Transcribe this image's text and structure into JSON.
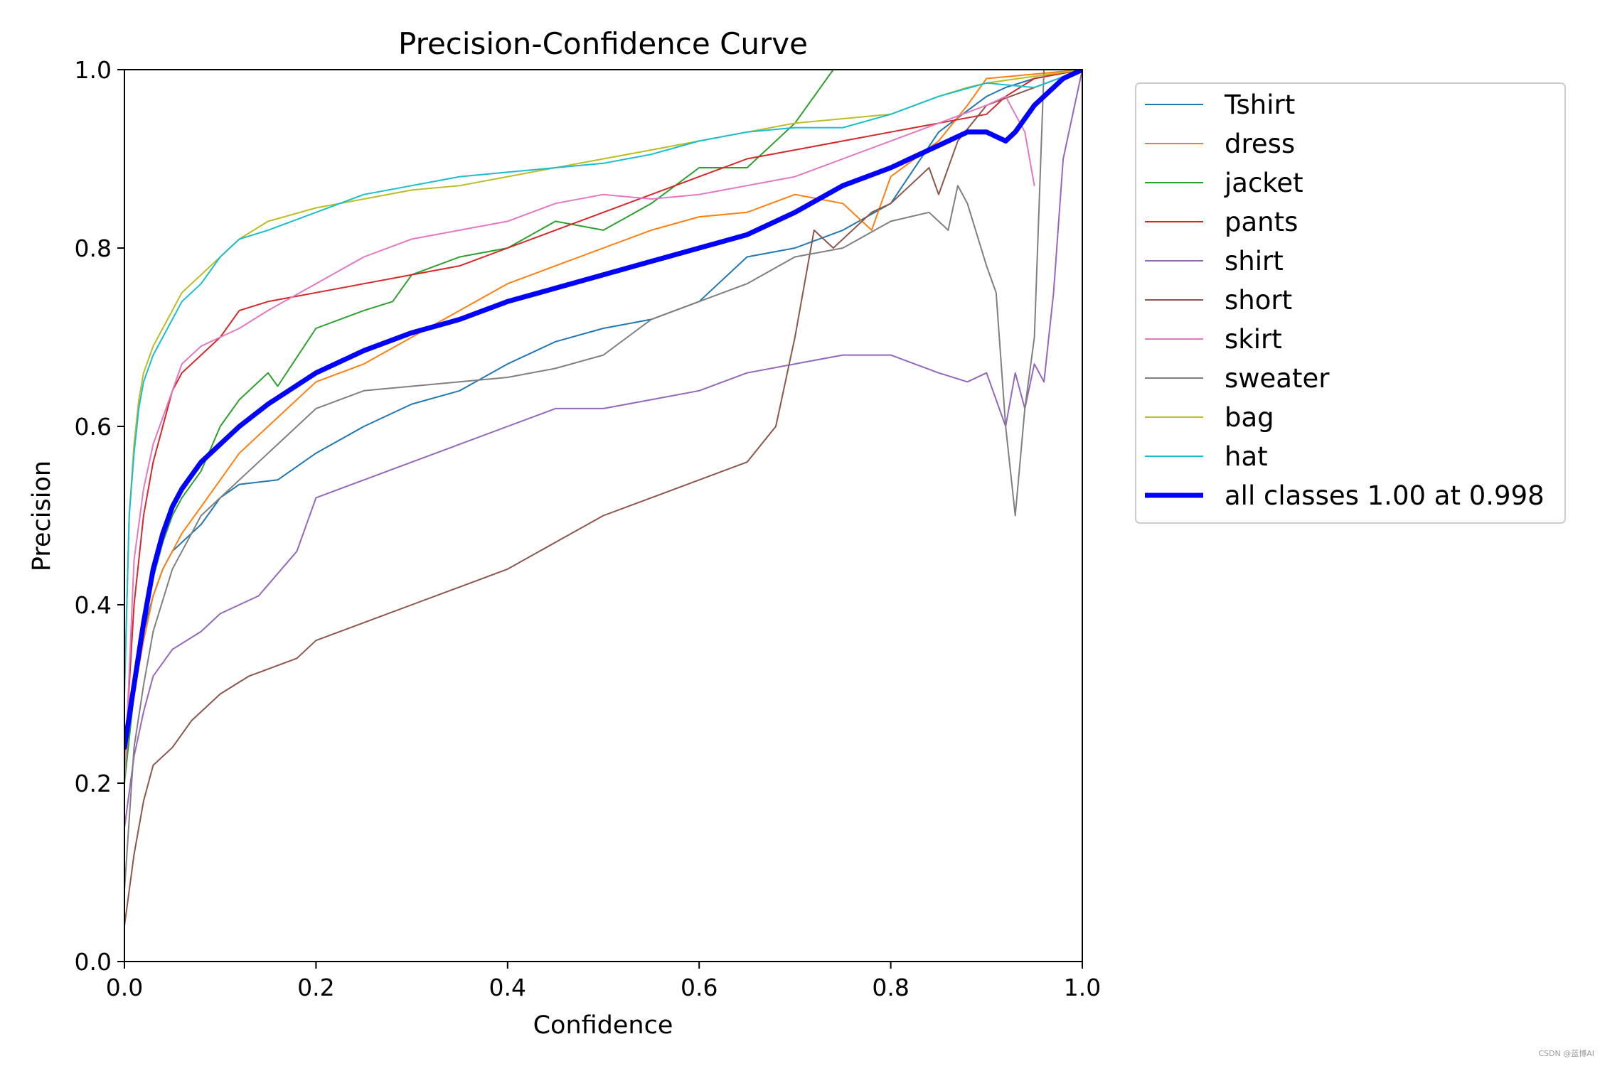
{
  "watermark": "CSDN @蓝博AI",
  "chart_data": {
    "type": "line",
    "title": "Precision-Confidence Curve",
    "xlabel": "Confidence",
    "ylabel": "Precision",
    "xlim": [
      0,
      1
    ],
    "ylim": [
      0,
      1
    ],
    "xticks": [
      "0.0",
      "0.2",
      "0.4",
      "0.6",
      "0.8",
      "1.0"
    ],
    "yticks": [
      "0.0",
      "0.2",
      "0.4",
      "0.6",
      "0.8",
      "1.0"
    ],
    "legend_position": "outside-right",
    "series": [
      {
        "name": "Tshirt",
        "color": "#1f77b4",
        "width": 2,
        "x": [
          0,
          0.01,
          0.02,
          0.03,
          0.04,
          0.05,
          0.06,
          0.08,
          0.1,
          0.12,
          0.16,
          0.2,
          0.25,
          0.3,
          0.35,
          0.4,
          0.45,
          0.5,
          0.55,
          0.6,
          0.65,
          0.7,
          0.75,
          0.8,
          0.85,
          0.9,
          0.92,
          0.95,
          1.0
        ],
        "y": [
          0.25,
          0.32,
          0.37,
          0.41,
          0.44,
          0.46,
          0.47,
          0.49,
          0.52,
          0.535,
          0.54,
          0.57,
          0.6,
          0.625,
          0.64,
          0.67,
          0.695,
          0.71,
          0.72,
          0.74,
          0.79,
          0.8,
          0.82,
          0.85,
          0.93,
          0.97,
          0.98,
          0.99,
          1.0
        ]
      },
      {
        "name": "dress",
        "color": "#ff7f0e",
        "width": 2,
        "x": [
          0,
          0.01,
          0.02,
          0.03,
          0.04,
          0.05,
          0.06,
          0.08,
          0.1,
          0.12,
          0.15,
          0.2,
          0.25,
          0.3,
          0.35,
          0.4,
          0.45,
          0.5,
          0.55,
          0.6,
          0.65,
          0.7,
          0.75,
          0.78,
          0.8,
          0.85,
          0.88,
          0.9,
          1.0
        ],
        "y": [
          0.22,
          0.3,
          0.36,
          0.41,
          0.44,
          0.46,
          0.48,
          0.51,
          0.54,
          0.57,
          0.6,
          0.65,
          0.67,
          0.7,
          0.73,
          0.76,
          0.78,
          0.8,
          0.82,
          0.835,
          0.84,
          0.86,
          0.85,
          0.82,
          0.88,
          0.92,
          0.96,
          0.99,
          1.0
        ]
      },
      {
        "name": "jacket",
        "color": "#2ca02c",
        "width": 2,
        "x": [
          0,
          0.01,
          0.02,
          0.03,
          0.04,
          0.05,
          0.06,
          0.08,
          0.1,
          0.12,
          0.15,
          0.16,
          0.2,
          0.25,
          0.28,
          0.3,
          0.35,
          0.4,
          0.45,
          0.5,
          0.55,
          0.6,
          0.65,
          0.7,
          0.74
        ],
        "y": [
          0.2,
          0.3,
          0.38,
          0.43,
          0.47,
          0.5,
          0.52,
          0.55,
          0.6,
          0.63,
          0.66,
          0.645,
          0.71,
          0.73,
          0.74,
          0.77,
          0.79,
          0.8,
          0.83,
          0.82,
          0.85,
          0.89,
          0.89,
          0.94,
          1.0
        ]
      },
      {
        "name": "pants",
        "color": "#d62728",
        "width": 2,
        "x": [
          0,
          0.01,
          0.02,
          0.03,
          0.04,
          0.05,
          0.06,
          0.08,
          0.1,
          0.12,
          0.15,
          0.2,
          0.25,
          0.3,
          0.35,
          0.4,
          0.45,
          0.5,
          0.55,
          0.6,
          0.65,
          0.7,
          0.75,
          0.8,
          0.85,
          0.9,
          0.92,
          0.95,
          1.0
        ],
        "y": [
          0.22,
          0.4,
          0.5,
          0.56,
          0.6,
          0.64,
          0.66,
          0.68,
          0.7,
          0.73,
          0.74,
          0.75,
          0.76,
          0.77,
          0.78,
          0.8,
          0.82,
          0.84,
          0.86,
          0.88,
          0.9,
          0.91,
          0.92,
          0.93,
          0.94,
          0.95,
          0.97,
          0.99,
          1.0
        ]
      },
      {
        "name": "shirt",
        "color": "#9467bd",
        "width": 2,
        "x": [
          0,
          0.01,
          0.02,
          0.03,
          0.05,
          0.08,
          0.1,
          0.14,
          0.18,
          0.2,
          0.25,
          0.3,
          0.35,
          0.4,
          0.45,
          0.5,
          0.55,
          0.6,
          0.65,
          0.7,
          0.75,
          0.8,
          0.85,
          0.88,
          0.9,
          0.92,
          0.93,
          0.94,
          0.95,
          0.96,
          0.97,
          0.98,
          1.0
        ],
        "y": [
          0.15,
          0.23,
          0.28,
          0.32,
          0.35,
          0.37,
          0.39,
          0.41,
          0.46,
          0.52,
          0.54,
          0.56,
          0.58,
          0.6,
          0.62,
          0.62,
          0.63,
          0.64,
          0.66,
          0.67,
          0.68,
          0.68,
          0.66,
          0.65,
          0.66,
          0.6,
          0.66,
          0.62,
          0.67,
          0.65,
          0.75,
          0.9,
          1.0
        ]
      },
      {
        "name": "short",
        "color": "#8c564b",
        "width": 2,
        "x": [
          0,
          0.01,
          0.02,
          0.03,
          0.05,
          0.07,
          0.1,
          0.13,
          0.18,
          0.2,
          0.25,
          0.3,
          0.35,
          0.4,
          0.45,
          0.5,
          0.55,
          0.6,
          0.65,
          0.68,
          0.7,
          0.72,
          0.74,
          0.78,
          0.8,
          0.84,
          0.85,
          0.87,
          0.9,
          1.0
        ],
        "y": [
          0.04,
          0.12,
          0.18,
          0.22,
          0.24,
          0.27,
          0.3,
          0.32,
          0.34,
          0.36,
          0.38,
          0.4,
          0.42,
          0.44,
          0.47,
          0.5,
          0.52,
          0.54,
          0.56,
          0.6,
          0.7,
          0.82,
          0.8,
          0.84,
          0.85,
          0.89,
          0.86,
          0.92,
          0.96,
          1.0
        ]
      },
      {
        "name": "skirt",
        "color": "#e377c2",
        "width": 2,
        "x": [
          0,
          0.01,
          0.02,
          0.03,
          0.04,
          0.05,
          0.06,
          0.08,
          0.1,
          0.12,
          0.15,
          0.2,
          0.25,
          0.3,
          0.35,
          0.4,
          0.45,
          0.5,
          0.55,
          0.6,
          0.65,
          0.7,
          0.75,
          0.8,
          0.85,
          0.9,
          0.92,
          0.94,
          0.95
        ],
        "y": [
          0.2,
          0.45,
          0.53,
          0.58,
          0.61,
          0.64,
          0.67,
          0.69,
          0.7,
          0.71,
          0.73,
          0.76,
          0.79,
          0.81,
          0.82,
          0.83,
          0.85,
          0.86,
          0.855,
          0.86,
          0.87,
          0.88,
          0.9,
          0.92,
          0.94,
          0.96,
          0.97,
          0.93,
          0.87
        ]
      },
      {
        "name": "sweater",
        "color": "#7f7f7f",
        "width": 2,
        "x": [
          0,
          0.01,
          0.02,
          0.03,
          0.05,
          0.08,
          0.1,
          0.12,
          0.15,
          0.2,
          0.25,
          0.3,
          0.35,
          0.4,
          0.45,
          0.5,
          0.55,
          0.6,
          0.65,
          0.7,
          0.75,
          0.8,
          0.84,
          0.86,
          0.87,
          0.88,
          0.9,
          0.91,
          0.92,
          0.93,
          0.94,
          0.95,
          0.96
        ],
        "y": [
          0.08,
          0.24,
          0.31,
          0.37,
          0.44,
          0.5,
          0.52,
          0.54,
          0.57,
          0.62,
          0.64,
          0.645,
          0.65,
          0.655,
          0.665,
          0.68,
          0.72,
          0.74,
          0.76,
          0.79,
          0.8,
          0.83,
          0.84,
          0.82,
          0.87,
          0.85,
          0.78,
          0.75,
          0.6,
          0.5,
          0.62,
          0.7,
          1.0
        ]
      },
      {
        "name": "bag",
        "color": "#bcbd22",
        "width": 2,
        "x": [
          0,
          0.005,
          0.01,
          0.015,
          0.02,
          0.03,
          0.04,
          0.05,
          0.06,
          0.08,
          0.1,
          0.12,
          0.15,
          0.2,
          0.25,
          0.3,
          0.35,
          0.4,
          0.45,
          0.5,
          0.55,
          0.6,
          0.65,
          0.7,
          0.75,
          0.8,
          0.85,
          0.88,
          0.9,
          1.0
        ],
        "y": [
          0.3,
          0.5,
          0.58,
          0.63,
          0.66,
          0.69,
          0.71,
          0.73,
          0.75,
          0.77,
          0.79,
          0.81,
          0.83,
          0.845,
          0.855,
          0.865,
          0.87,
          0.88,
          0.89,
          0.9,
          0.91,
          0.92,
          0.93,
          0.94,
          0.945,
          0.95,
          0.97,
          0.98,
          0.985,
          1.0
        ]
      },
      {
        "name": "hat",
        "color": "#17becf",
        "width": 2,
        "x": [
          0,
          0.005,
          0.01,
          0.015,
          0.02,
          0.03,
          0.04,
          0.05,
          0.06,
          0.08,
          0.1,
          0.12,
          0.15,
          0.2,
          0.25,
          0.3,
          0.35,
          0.4,
          0.45,
          0.5,
          0.55,
          0.6,
          0.65,
          0.7,
          0.75,
          0.8,
          0.85,
          0.9,
          0.95,
          1.0
        ],
        "y": [
          0.3,
          0.5,
          0.57,
          0.62,
          0.65,
          0.68,
          0.7,
          0.72,
          0.74,
          0.76,
          0.79,
          0.81,
          0.82,
          0.84,
          0.86,
          0.87,
          0.88,
          0.885,
          0.89,
          0.895,
          0.905,
          0.92,
          0.93,
          0.935,
          0.935,
          0.95,
          0.97,
          0.985,
          0.98,
          1.0
        ]
      },
      {
        "name": "all classes 1.00 at 0.998",
        "color": "#0000ff",
        "width": 7,
        "x": [
          0,
          0.01,
          0.02,
          0.03,
          0.04,
          0.05,
          0.06,
          0.08,
          0.1,
          0.12,
          0.15,
          0.2,
          0.25,
          0.3,
          0.35,
          0.4,
          0.45,
          0.5,
          0.55,
          0.6,
          0.65,
          0.7,
          0.75,
          0.8,
          0.85,
          0.88,
          0.9,
          0.92,
          0.93,
          0.95,
          0.98,
          1.0
        ],
        "y": [
          0.24,
          0.31,
          0.38,
          0.44,
          0.48,
          0.51,
          0.53,
          0.56,
          0.58,
          0.6,
          0.625,
          0.66,
          0.685,
          0.705,
          0.72,
          0.74,
          0.755,
          0.77,
          0.785,
          0.8,
          0.815,
          0.84,
          0.87,
          0.89,
          0.915,
          0.93,
          0.93,
          0.92,
          0.93,
          0.96,
          0.99,
          1.0
        ]
      }
    ]
  }
}
